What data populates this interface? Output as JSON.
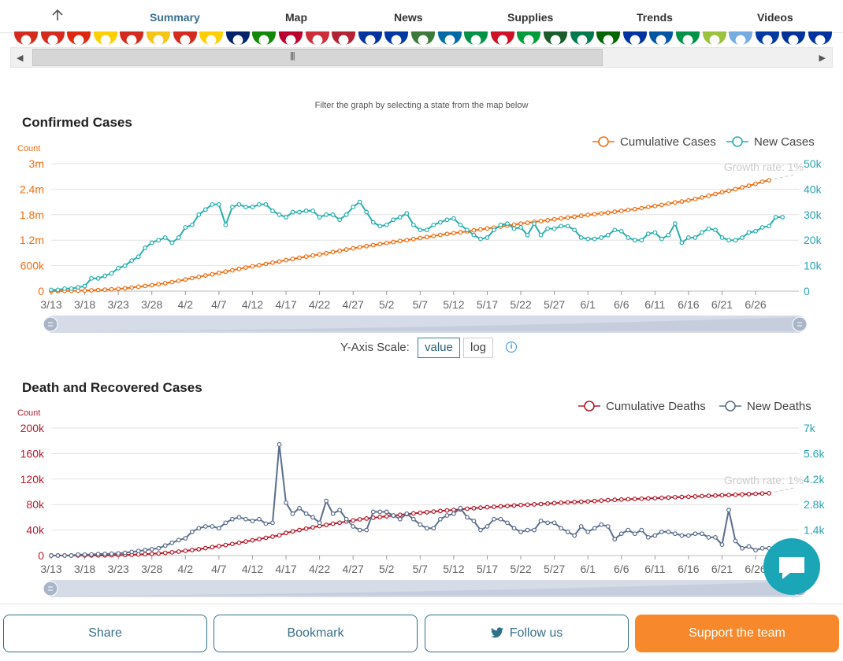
{
  "nav": {
    "tabs": [
      {
        "label": "Summary",
        "active": true
      },
      {
        "label": "Map"
      },
      {
        "label": "News"
      },
      {
        "label": "Supplies"
      },
      {
        "label": "Trends"
      },
      {
        "label": "Videos"
      }
    ]
  },
  "flag_colors": [
    "#d52b1e",
    "#d52b1e",
    "#de2910",
    "#ffce00",
    "#d52b1e",
    "#f5c518",
    "#d52b1e",
    "#ffce00",
    "#012169",
    "#138808",
    "#bc002d",
    "#cd2e3a",
    "#b22234",
    "#0033a0",
    "#0039a6",
    "#3b7a3b",
    "#006aa7",
    "#009246",
    "#ce1126",
    "#009c3b",
    "#1a5c2a",
    "#007a4d",
    "#006600",
    "#0033a0",
    "#0055a4",
    "#009246",
    "#9ac23c",
    "#74acdf",
    "#0039a6",
    "#003399",
    "#0033a0"
  ],
  "filter_note": "Filter the graph by selecting a state from the map below",
  "confirmed": {
    "section_title": "Confirmed Cases",
    "axis_title": "Count",
    "left_ticks": [
      "0",
      "600k",
      "1.2m",
      "1.8m",
      "2.4m",
      "3m"
    ],
    "right_ticks": [
      "0",
      "10k",
      "20k",
      "30k",
      "40k",
      "50k"
    ],
    "growth_note": "Growth rate: 1%",
    "legend": {
      "cumulative": "Cumulative Cases",
      "new": "New Cases"
    },
    "colors": {
      "cumulative": "#f06d12",
      "new": "#29aeae"
    }
  },
  "scale": {
    "label": "Y-Axis Scale:",
    "value": "value",
    "log": "log",
    "info": "i",
    "selected": "value"
  },
  "deaths": {
    "section_title": "Death and Recovered Cases",
    "axis_title": "Count",
    "left_ticks": [
      "0",
      "40k",
      "80k",
      "120k",
      "160k",
      "200k"
    ],
    "right_ticks": [
      "1.4k",
      "2.8k",
      "4.2k",
      "5.6k",
      "7k"
    ],
    "growth_note": "Growth rate: 1%",
    "legend": {
      "cumulative": "Cumulative Deaths",
      "new": "New Deaths"
    },
    "colors": {
      "cumulative": "#b51c2c",
      "new": "#5a6e8c"
    }
  },
  "chart_data": [
    {
      "type": "line",
      "title": "Confirmed Cases",
      "ylabel": "Count",
      "x_tick_labels": [
        "3/13",
        "3/18",
        "3/23",
        "3/28",
        "4/2",
        "4/7",
        "4/12",
        "4/17",
        "4/22",
        "4/27",
        "5/2",
        "5/7",
        "5/12",
        "5/17",
        "5/22",
        "5/27",
        "6/1",
        "6/6",
        "6/11",
        "6/16",
        "6/21",
        "6/26"
      ],
      "x_start": "3/13",
      "x_end": "6/29",
      "series": [
        {
          "name": "Cumulative Cases",
          "axis": "left",
          "ylim": [
            0,
            3000000
          ],
          "values": [
            2000,
            3500,
            5000,
            7500,
            10000,
            14000,
            19000,
            26000,
            33500,
            43000,
            53500,
            66000,
            85500,
            103000,
            123000,
            142000,
            163000,
            187000,
            213000,
            243000,
            275000,
            308000,
            336500,
            367000,
            397000,
            429000,
            460000,
            492000,
            524000,
            555000,
            586000,
            613000,
            641000,
            671000,
            700000,
            730000,
            758000,
            786000,
            813000,
            839000,
            865000,
            892000,
            920000,
            950000,
            980000,
            1008000,
            1035000,
            1059000,
            1083000,
            1108000,
            1132000,
            1156000,
            1180000,
            1202000,
            1225000,
            1250000,
            1275000,
            1298000,
            1322000,
            1346000,
            1366000,
            1386000,
            1407000,
            1431000,
            1452000,
            1475000,
            1496000,
            1519000,
            1544000,
            1565000,
            1590000,
            1610000,
            1630000,
            1649000,
            1668000,
            1691000,
            1712000,
            1731000,
            1752000,
            1774000,
            1795000,
            1813000,
            1831000,
            1848000,
            1869000,
            1890000,
            1912000,
            1930000,
            1952000,
            1979000,
            2004000,
            2030000,
            2060000,
            2087000,
            2110000,
            2136000,
            2170000,
            2206000,
            2246000,
            2287000,
            2327000,
            2364000,
            2400000,
            2444000,
            2480000,
            2526000,
            2574000,
            2610000
          ]
        },
        {
          "name": "New Cases",
          "axis": "right",
          "ylim": [
            0,
            50000
          ],
          "values": [
            500,
            500,
            1000,
            1000,
            1500,
            2000,
            5000,
            5000,
            6000,
            7000,
            9000,
            10000,
            12000,
            13500,
            17000,
            19000,
            20000,
            21000,
            19000,
            21000,
            25000,
            26000,
            30000,
            32000,
            34000,
            34000,
            26000,
            33000,
            34000,
            33000,
            33000,
            34000,
            34000,
            31500,
            30000,
            29000,
            31000,
            31000,
            31500,
            31500,
            29000,
            30000,
            30000,
            28000,
            30000,
            33000,
            35000,
            31000,
            27000,
            25500,
            26000,
            28000,
            29000,
            30500,
            26000,
            24000,
            24000,
            26000,
            27000,
            28000,
            28500,
            26000,
            24000,
            22000,
            20500,
            21000,
            24000,
            26000,
            26500,
            24500,
            25000,
            22000,
            26500,
            22000,
            24500,
            24500,
            25500,
            25500,
            24000,
            21000,
            20500,
            20500,
            21000,
            22000,
            24000,
            23500,
            21000,
            20000,
            20000,
            22500,
            23000,
            20500,
            22000,
            26500,
            19000,
            21000,
            21000,
            23000,
            24500,
            24000,
            21000,
            20000,
            20000,
            21000,
            23000,
            23500,
            25000,
            25500,
            29000,
            29000
          ]
        }
      ]
    },
    {
      "type": "line",
      "title": "Death and Recovered Cases",
      "ylabel": "Count",
      "x_tick_labels": [
        "3/13",
        "3/18",
        "3/23",
        "3/28",
        "4/2",
        "4/7",
        "4/12",
        "4/17",
        "4/22",
        "4/27",
        "5/2",
        "5/7",
        "5/12",
        "5/17",
        "5/22",
        "5/27",
        "6/1",
        "6/6",
        "6/11",
        "6/16",
        "6/21",
        "6/26"
      ],
      "x_start": "3/13",
      "x_end": "6/29",
      "series": [
        {
          "name": "Cumulative Deaths",
          "axis": "left",
          "ylim": [
            0,
            200000
          ],
          "values": [
            50,
            60,
            80,
            100,
            150,
            200,
            250,
            300,
            400,
            600,
            800,
            1000,
            1300,
            1700,
            2200,
            2700,
            3400,
            4200,
            5100,
            6200,
            7400,
            8600,
            10000,
            11600,
            13200,
            14800,
            16500,
            18200,
            20100,
            22000,
            24000,
            25900,
            27800,
            29700,
            31800,
            35400,
            37900,
            40100,
            42200,
            44300,
            46300,
            48100,
            49900,
            51500,
            53400,
            55000,
            56800,
            58100,
            59300,
            60400,
            61600,
            62600,
            63900,
            65000,
            66100,
            67100,
            68000,
            69000,
            70000,
            70800,
            71600,
            72500,
            73500,
            74300,
            75100,
            75800,
            76400,
            77100,
            77800,
            78500,
            79300,
            79800,
            80300,
            80900,
            81600,
            82200,
            82900,
            83500,
            84000,
            84500,
            85000,
            85600,
            86300,
            86900,
            87400,
            87900,
            88400,
            88800,
            89200,
            89600,
            90000,
            90500,
            91000,
            91500,
            91900,
            92300,
            92700,
            93200,
            93700,
            94100,
            94600,
            95000,
            95400,
            95900,
            96400,
            96900,
            97400,
            97700
          ]
        },
        {
          "name": "New Deaths",
          "axis": "right",
          "ylim": [
            0,
            7000
          ],
          "values": [
            0,
            0,
            0,
            0,
            50,
            50,
            60,
            80,
            90,
            100,
            120,
            150,
            200,
            250,
            300,
            350,
            400,
            550,
            700,
            850,
            950,
            1300,
            1500,
            1600,
            1600,
            1500,
            1800,
            2000,
            2100,
            2000,
            1900,
            2000,
            1750,
            1800,
            6100,
            2900,
            2300,
            2600,
            2300,
            2100,
            1800,
            3000,
            2300,
            2500,
            2000,
            1600,
            1400,
            1400,
            2400,
            2400,
            2400,
            2200,
            2000,
            2300,
            2000,
            1700,
            1500,
            1500,
            2000,
            2200,
            2300,
            2600,
            2100,
            1900,
            1400,
            1600,
            2000,
            2000,
            1800,
            1500,
            1300,
            1400,
            1400,
            1900,
            1800,
            1800,
            1500,
            1300,
            1100,
            1600,
            1300,
            1500,
            1700,
            1600,
            900,
            1200,
            1400,
            1200,
            1400,
            1000,
            1100,
            1300,
            1300,
            1200,
            1100,
            1100,
            1200,
            1200,
            1000,
            1000,
            600,
            2500,
            800,
            400,
            500,
            300,
            400,
            400
          ]
        }
      ]
    }
  ],
  "buttons": {
    "share": "Share",
    "bookmark": "Bookmark",
    "follow": "Follow us",
    "support": "Support the team"
  }
}
